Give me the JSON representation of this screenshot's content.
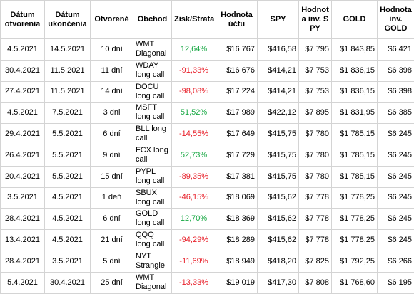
{
  "table": {
    "header": [
      "Dátum otvorenia",
      "Dátum ukončenia",
      "Otvorené",
      "Obchod",
      "Zisk/Strata",
      "Hodnota účtu",
      "SPY",
      "Hodnota inv. SPY",
      "GOLD",
      "Hodnota inv. GOLD"
    ],
    "positive_color": "#17a843",
    "negative_color": "#e8202a",
    "rows": [
      [
        "4.5.2021",
        "14.5.2021",
        "10 dní",
        "WMT Diagonal",
        "12,64%",
        "$16 767",
        "$416,58",
        "$7 795",
        "$1 843,85",
        "$6 421"
      ],
      [
        "30.4.2021",
        "11.5.2021",
        "11 dní",
        "WDAY long call",
        "-91,33%",
        "$16 676",
        "$414,21",
        "$7 753",
        "$1 836,15",
        "$6 398"
      ],
      [
        "27.4.2021",
        "11.5.2021",
        "14 dní",
        "DOCU long call",
        "-98,08%",
        "$17 224",
        "$414,21",
        "$7 753",
        "$1 836,15",
        "$6 398"
      ],
      [
        "4.5.2021",
        "7.5.2021",
        "3 dni",
        "MSFT long call",
        "51,52%",
        "$17 989",
        "$422,12",
        "$7 895",
        "$1 831,95",
        "$6 385"
      ],
      [
        "29.4.2021",
        "5.5.2021",
        "6 dní",
        "BLL long call",
        "-14,55%",
        "$17 649",
        "$415,75",
        "$7 780",
        "$1 785,15",
        "$6 245"
      ],
      [
        "26.4.2021",
        "5.5.2021",
        "9 dní",
        "FCX long call",
        "52,73%",
        "$17 729",
        "$415,75",
        "$7 780",
        "$1 785,15",
        "$6 245"
      ],
      [
        "20.4.2021",
        "5.5.2021",
        "15 dní",
        "PYPL long call",
        "-89,35%",
        "$17 381",
        "$415,75",
        "$7 780",
        "$1 785,15",
        "$6 245"
      ],
      [
        "3.5.2021",
        "4.5.2021",
        "1 deň",
        "SBUX long call",
        "-46,15%",
        "$18 069",
        "$415,62",
        "$7 778",
        "$1 778,25",
        "$6 245"
      ],
      [
        "28.4.2021",
        "4.5.2021",
        "6 dní",
        "GOLD long call",
        "12,70%",
        "$18 369",
        "$415,62",
        "$7 778",
        "$1 778,25",
        "$6 245"
      ],
      [
        "13.4.2021",
        "4.5.2021",
        "21 dní",
        "QQQ long call",
        "-94,29%",
        "$18 289",
        "$415,62",
        "$7 778",
        "$1 778,25",
        "$6 245"
      ],
      [
        "28.4.2021",
        "3.5.2021",
        "5 dní",
        "NYT Strangle",
        "-11,69%",
        "$18 949",
        "$418,20",
        "$7 825",
        "$1 792,25",
        "$6 266"
      ],
      [
        "5.4.2021",
        "30.4.2021",
        "25 dní",
        "WMT Diagonal",
        "-13,33%",
        "$19 019",
        "$417,30",
        "$7 808",
        "$1 768,60",
        "$6 195"
      ]
    ]
  }
}
